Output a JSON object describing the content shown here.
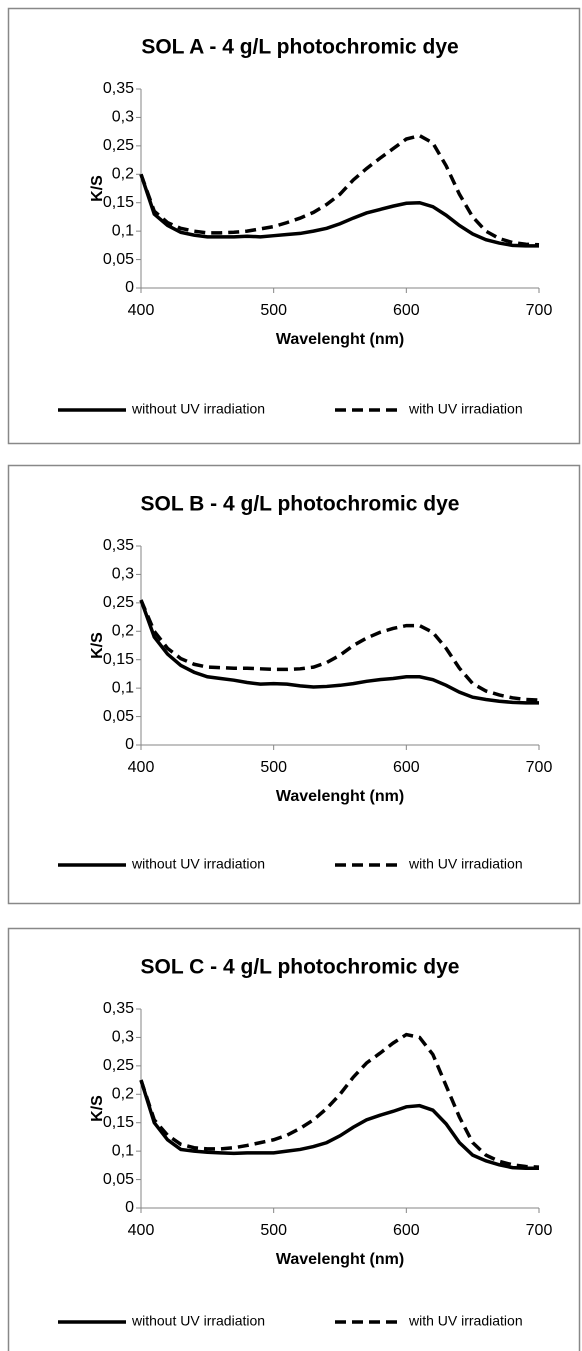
{
  "chart_data": [
    {
      "type": "line",
      "title": "SOL A - 4 g/L photochromic dye",
      "xlabel": "Wavelenght (nm)",
      "ylabel": "K/S",
      "x": [
        400,
        410,
        420,
        430,
        440,
        450,
        460,
        470,
        480,
        490,
        500,
        510,
        520,
        530,
        540,
        550,
        560,
        570,
        580,
        590,
        600,
        610,
        620,
        630,
        640,
        650,
        660,
        670,
        680,
        690,
        700
      ],
      "series": [
        {
          "name": "without UV irradiation",
          "color": "#000000",
          "style": "solid",
          "values": [
            0.2,
            0.13,
            0.11,
            0.098,
            0.093,
            0.09,
            0.09,
            0.09,
            0.091,
            0.09,
            0.092,
            0.094,
            0.096,
            0.1,
            0.105,
            0.113,
            0.123,
            0.132,
            0.138,
            0.144,
            0.149,
            0.15,
            0.143,
            0.128,
            0.11,
            0.095,
            0.085,
            0.079,
            0.075,
            0.074,
            0.074
          ]
        },
        {
          "name": "with UV irradiation",
          "color": "#000000",
          "style": "dashed",
          "values": [
            0.2,
            0.135,
            0.115,
            0.105,
            0.1,
            0.097,
            0.097,
            0.098,
            0.1,
            0.104,
            0.108,
            0.115,
            0.123,
            0.133,
            0.147,
            0.165,
            0.19,
            0.21,
            0.228,
            0.245,
            0.262,
            0.268,
            0.255,
            0.215,
            0.165,
            0.125,
            0.1,
            0.087,
            0.08,
            0.077,
            0.076
          ]
        }
      ],
      "xlim": [
        400,
        700
      ],
      "xticks": [
        400,
        500,
        600,
        700
      ],
      "ylim": [
        0,
        0.35
      ],
      "yticks": [
        0,
        {
          "value": 0.05,
          "label": "0,05"
        },
        {
          "value": 0.1,
          "label": "0,1"
        },
        {
          "value": 0.15,
          "label": "0,15"
        },
        {
          "value": 0.2,
          "label": "0,2"
        },
        {
          "value": 0.25,
          "label": "0,25"
        },
        {
          "value": 0.3,
          "label": "0,3"
        },
        {
          "value": 0.35,
          "label": "0,35"
        }
      ],
      "grid": false,
      "legend": "bottom"
    },
    {
      "type": "line",
      "title": "SOL B - 4 g/L photochromic dye",
      "xlabel": "Wavelenght (nm)",
      "ylabel": "K/S",
      "x": [
        400,
        410,
        420,
        430,
        440,
        450,
        460,
        470,
        480,
        490,
        500,
        510,
        520,
        530,
        540,
        550,
        560,
        570,
        580,
        590,
        600,
        610,
        620,
        630,
        640,
        650,
        660,
        670,
        680,
        690,
        700
      ],
      "series": [
        {
          "name": "without UV irradiation",
          "color": "#000000",
          "style": "solid",
          "values": [
            0.255,
            0.19,
            0.16,
            0.14,
            0.128,
            0.12,
            0.117,
            0.114,
            0.11,
            0.107,
            0.108,
            0.107,
            0.104,
            0.102,
            0.103,
            0.105,
            0.108,
            0.112,
            0.115,
            0.117,
            0.12,
            0.12,
            0.115,
            0.105,
            0.093,
            0.084,
            0.08,
            0.077,
            0.075,
            0.074,
            0.074
          ]
        },
        {
          "name": "with UV irradiation",
          "color": "#000000",
          "style": "dashed",
          "values": [
            0.255,
            0.2,
            0.17,
            0.152,
            0.142,
            0.137,
            0.136,
            0.135,
            0.135,
            0.134,
            0.133,
            0.133,
            0.134,
            0.137,
            0.145,
            0.158,
            0.175,
            0.188,
            0.198,
            0.205,
            0.21,
            0.21,
            0.198,
            0.17,
            0.135,
            0.108,
            0.095,
            0.088,
            0.083,
            0.08,
            0.079
          ]
        }
      ],
      "xlim": [
        400,
        700
      ],
      "xticks": [
        400,
        500,
        600,
        700
      ],
      "ylim": [
        0,
        0.35
      ],
      "yticks": [
        0,
        {
          "value": 0.05,
          "label": "0,05"
        },
        {
          "value": 0.1,
          "label": "0,1"
        },
        {
          "value": 0.15,
          "label": "0,15"
        },
        {
          "value": 0.2,
          "label": "0,2"
        },
        {
          "value": 0.25,
          "label": "0,25"
        },
        {
          "value": 0.3,
          "label": "0,3"
        },
        {
          "value": 0.35,
          "label": "0,35"
        }
      ],
      "grid": false,
      "legend": "bottom"
    },
    {
      "type": "line",
      "title": "SOL C - 4 g/L photochromic dye",
      "xlabel": "Wavelenght (nm)",
      "ylabel": "K/S",
      "x": [
        400,
        410,
        420,
        430,
        440,
        450,
        460,
        470,
        480,
        490,
        500,
        510,
        520,
        530,
        540,
        550,
        560,
        570,
        580,
        590,
        600,
        610,
        620,
        630,
        640,
        650,
        660,
        670,
        680,
        690,
        700
      ],
      "series": [
        {
          "name": "without UV irradiation",
          "color": "#000000",
          "style": "solid",
          "values": [
            0.225,
            0.15,
            0.12,
            0.103,
            0.1,
            0.098,
            0.097,
            0.096,
            0.097,
            0.097,
            0.097,
            0.1,
            0.103,
            0.108,
            0.115,
            0.127,
            0.142,
            0.155,
            0.163,
            0.17,
            0.178,
            0.18,
            0.172,
            0.148,
            0.115,
            0.093,
            0.083,
            0.076,
            0.071,
            0.07,
            0.07
          ]
        },
        {
          "name": "with UV irradiation",
          "color": "#000000",
          "style": "dashed",
          "values": [
            0.225,
            0.155,
            0.128,
            0.112,
            0.106,
            0.104,
            0.104,
            0.106,
            0.11,
            0.115,
            0.12,
            0.128,
            0.14,
            0.155,
            0.175,
            0.2,
            0.23,
            0.255,
            0.272,
            0.29,
            0.305,
            0.3,
            0.27,
            0.215,
            0.16,
            0.115,
            0.093,
            0.082,
            0.076,
            0.073,
            0.072
          ]
        }
      ],
      "xlim": [
        400,
        700
      ],
      "xticks": [
        400,
        500,
        600,
        700
      ],
      "ylim": [
        0,
        0.35
      ],
      "yticks": [
        0,
        {
          "value": 0.05,
          "label": "0,05"
        },
        {
          "value": 0.1,
          "label": "0,1"
        },
        {
          "value": 0.15,
          "label": "0,15"
        },
        {
          "value": 0.2,
          "label": "0,2"
        },
        {
          "value": 0.25,
          "label": "0,25"
        },
        {
          "value": 0.3,
          "label": "0,3"
        },
        {
          "value": 0.35,
          "label": "0,35"
        }
      ],
      "grid": false,
      "legend": "bottom"
    }
  ]
}
